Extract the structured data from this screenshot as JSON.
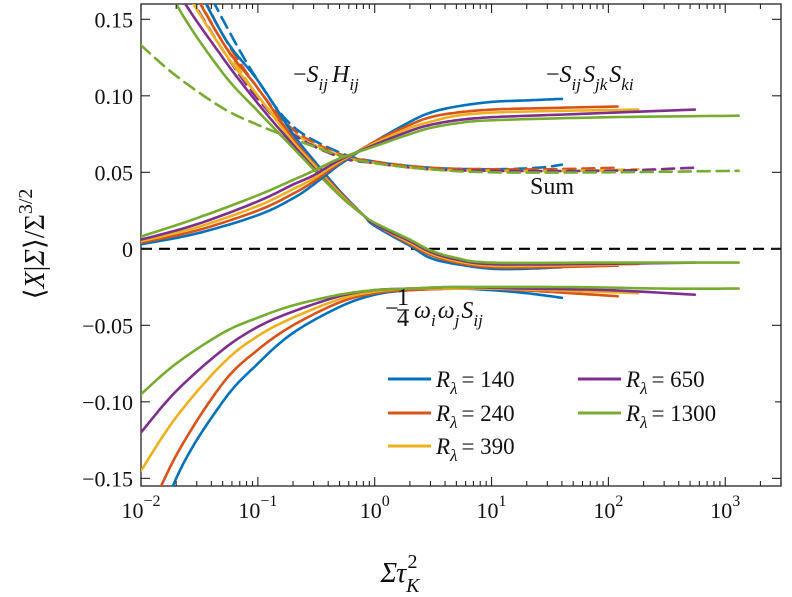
{
  "chart_data": {
    "type": "line",
    "xscale": "log",
    "xlim": [
      0.01,
      3000
    ],
    "ylim": [
      -0.155,
      0.16
    ],
    "xticks": [
      {
        "value": 0.01,
        "base": "10",
        "exp": "−2"
      },
      {
        "value": 0.1,
        "base": "10",
        "exp": "−1"
      },
      {
        "value": 1,
        "base": "10",
        "exp": "0"
      },
      {
        "value": 10,
        "base": "10",
        "exp": "1"
      },
      {
        "value": 100,
        "base": "10",
        "exp": "2"
      },
      {
        "value": 1000,
        "base": "10",
        "exp": "3"
      }
    ],
    "yticks": [
      {
        "value": 0.15,
        "label": "0.15"
      },
      {
        "value": 0.1,
        "label": "0.10"
      },
      {
        "value": 0.05,
        "label": "0.05"
      },
      {
        "value": 0,
        "label": "0"
      },
      {
        "value": -0.05,
        "label": "−0.05"
      },
      {
        "value": -0.1,
        "label": "−0.10"
      },
      {
        "value": -0.15,
        "label": "−0.15"
      }
    ],
    "xlabel": "Στ_K^2",
    "ylabel": "⟨X|Σ⟩/Σ^{3/2}",
    "grid": false,
    "legend_position": "bottom-right",
    "colors": {
      "140": "#0072BD",
      "240": "#D95319",
      "390": "#EDB120",
      "650": "#7E2F8E",
      "1300": "#77AC30"
    },
    "series": [
      {
        "name": "Rλ = 140",
        "legend_label": "= 140",
        "color": "#0072BD",
        "xmax": 40,
        "SH": [
          [
            0.01,
            0.25
          ],
          [
            0.02,
            0.2
          ],
          [
            0.05,
            0.14
          ],
          [
            0.1,
            0.11
          ],
          [
            0.2,
            0.075
          ],
          [
            0.3,
            0.058
          ],
          [
            0.5,
            0.038
          ],
          [
            0.8,
            0.022
          ],
          [
            1,
            0.015
          ],
          [
            2,
            0.002
          ],
          [
            3,
            -0.006
          ],
          [
            5,
            -0.01
          ],
          [
            10,
            -0.013
          ],
          [
            20,
            -0.013
          ],
          [
            40,
            -0.012
          ]
        ],
        "SSS": [
          [
            0.01,
            0.003
          ],
          [
            0.03,
            0.01
          ],
          [
            0.1,
            0.022
          ],
          [
            0.2,
            0.033
          ],
          [
            0.3,
            0.042
          ],
          [
            0.5,
            0.055
          ],
          [
            1,
            0.07
          ],
          [
            2,
            0.083
          ],
          [
            3,
            0.089
          ],
          [
            5,
            0.093
          ],
          [
            10,
            0.096
          ],
          [
            20,
            0.097
          ],
          [
            40,
            0.098
          ]
        ],
        "WWS": [
          [
            0.01,
            -0.22
          ],
          [
            0.02,
            -0.15
          ],
          [
            0.05,
            -0.1
          ],
          [
            0.1,
            -0.075
          ],
          [
            0.2,
            -0.055
          ],
          [
            0.5,
            -0.038
          ],
          [
            1,
            -0.03
          ],
          [
            2,
            -0.027
          ],
          [
            5,
            -0.026
          ],
          [
            10,
            -0.027
          ],
          [
            20,
            -0.029
          ],
          [
            40,
            -0.032
          ]
        ],
        "SUM": [
          [
            0.01,
            0.25
          ],
          [
            0.02,
            0.21
          ],
          [
            0.05,
            0.15
          ],
          [
            0.1,
            0.11
          ],
          [
            0.2,
            0.08
          ],
          [
            0.5,
            0.063
          ],
          [
            1,
            0.057
          ],
          [
            3,
            0.053
          ],
          [
            10,
            0.052
          ],
          [
            25,
            0.053
          ],
          [
            40,
            0.055
          ]
        ]
      },
      {
        "name": "Rλ = 240",
        "legend_label": "= 240",
        "color": "#D95319",
        "xmax": 120,
        "SH": [
          [
            0.01,
            0.24
          ],
          [
            0.02,
            0.19
          ],
          [
            0.05,
            0.135
          ],
          [
            0.1,
            0.105
          ],
          [
            0.2,
            0.072
          ],
          [
            0.3,
            0.056
          ],
          [
            0.5,
            0.037
          ],
          [
            0.8,
            0.022
          ],
          [
            1,
            0.016
          ],
          [
            2,
            0.003
          ],
          [
            3,
            -0.004
          ],
          [
            5,
            -0.009
          ],
          [
            10,
            -0.012
          ],
          [
            30,
            -0.012
          ],
          [
            120,
            -0.011
          ]
        ],
        "SSS": [
          [
            0.01,
            0.004
          ],
          [
            0.03,
            0.012
          ],
          [
            0.1,
            0.025
          ],
          [
            0.2,
            0.036
          ],
          [
            0.3,
            0.044
          ],
          [
            0.5,
            0.056
          ],
          [
            1,
            0.07
          ],
          [
            2,
            0.081
          ],
          [
            3,
            0.086
          ],
          [
            5,
            0.089
          ],
          [
            10,
            0.091
          ],
          [
            30,
            0.092
          ],
          [
            120,
            0.093
          ]
        ],
        "WWS": [
          [
            0.01,
            -0.185
          ],
          [
            0.02,
            -0.135
          ],
          [
            0.05,
            -0.088
          ],
          [
            0.1,
            -0.066
          ],
          [
            0.2,
            -0.05
          ],
          [
            0.5,
            -0.035
          ],
          [
            1,
            -0.029
          ],
          [
            2,
            -0.027
          ],
          [
            5,
            -0.026
          ],
          [
            10,
            -0.026
          ],
          [
            30,
            -0.028
          ],
          [
            120,
            -0.031
          ]
        ],
        "SUM": [
          [
            0.01,
            0.24
          ],
          [
            0.02,
            0.2
          ],
          [
            0.05,
            0.14
          ],
          [
            0.1,
            0.105
          ],
          [
            0.2,
            0.078
          ],
          [
            0.5,
            0.062
          ],
          [
            1,
            0.057
          ],
          [
            3,
            0.053
          ],
          [
            10,
            0.052
          ],
          [
            30,
            0.052
          ],
          [
            120,
            0.053
          ]
        ]
      },
      {
        "name": "Rλ = 390",
        "legend_label": "= 390",
        "color": "#EDB120",
        "xmax": 180,
        "SH": [
          [
            0.01,
            0.23
          ],
          [
            0.02,
            0.18
          ],
          [
            0.05,
            0.13
          ],
          [
            0.1,
            0.1
          ],
          [
            0.2,
            0.07
          ],
          [
            0.3,
            0.055
          ],
          [
            0.5,
            0.036
          ],
          [
            0.8,
            0.022
          ],
          [
            1,
            0.016
          ],
          [
            2,
            0.004
          ],
          [
            3,
            -0.003
          ],
          [
            5,
            -0.008
          ],
          [
            10,
            -0.011
          ],
          [
            30,
            -0.011
          ],
          [
            180,
            -0.01
          ]
        ],
        "SSS": [
          [
            0.01,
            0.005
          ],
          [
            0.03,
            0.014
          ],
          [
            0.1,
            0.028
          ],
          [
            0.2,
            0.039
          ],
          [
            0.3,
            0.046
          ],
          [
            0.5,
            0.057
          ],
          [
            1,
            0.069
          ],
          [
            2,
            0.079
          ],
          [
            3,
            0.083
          ],
          [
            5,
            0.087
          ],
          [
            10,
            0.089
          ],
          [
            30,
            0.09
          ],
          [
            180,
            0.091
          ]
        ],
        "WWS": [
          [
            0.01,
            -0.145
          ],
          [
            0.02,
            -0.11
          ],
          [
            0.05,
            -0.075
          ],
          [
            0.1,
            -0.057
          ],
          [
            0.2,
            -0.045
          ],
          [
            0.5,
            -0.033
          ],
          [
            1,
            -0.028
          ],
          [
            2,
            -0.026
          ],
          [
            5,
            -0.026
          ],
          [
            10,
            -0.026
          ],
          [
            30,
            -0.027
          ],
          [
            180,
            -0.029
          ]
        ],
        "SUM": [
          [
            0.01,
            0.23
          ],
          [
            0.02,
            0.19
          ],
          [
            0.05,
            0.135
          ],
          [
            0.1,
            0.1
          ],
          [
            0.2,
            0.076
          ],
          [
            0.5,
            0.061
          ],
          [
            1,
            0.056
          ],
          [
            3,
            0.052
          ],
          [
            10,
            0.051
          ],
          [
            50,
            0.051
          ],
          [
            180,
            0.052
          ]
        ]
      },
      {
        "name": "Rλ = 650",
        "legend_label": "= 650",
        "color": "#7E2F8E",
        "xmax": 550,
        "SH": [
          [
            0.01,
            0.22
          ],
          [
            0.02,
            0.17
          ],
          [
            0.05,
            0.125
          ],
          [
            0.1,
            0.095
          ],
          [
            0.2,
            0.068
          ],
          [
            0.3,
            0.053
          ],
          [
            0.5,
            0.035
          ],
          [
            0.8,
            0.022
          ],
          [
            1,
            0.016
          ],
          [
            2,
            0.005
          ],
          [
            3,
            -0.002
          ],
          [
            5,
            -0.007
          ],
          [
            10,
            -0.01
          ],
          [
            50,
            -0.01
          ],
          [
            550,
            -0.009
          ]
        ],
        "SSS": [
          [
            0.01,
            0.006
          ],
          [
            0.03,
            0.016
          ],
          [
            0.1,
            0.031
          ],
          [
            0.2,
            0.042
          ],
          [
            0.3,
            0.048
          ],
          [
            0.5,
            0.058
          ],
          [
            1,
            0.068
          ],
          [
            2,
            0.077
          ],
          [
            3,
            0.081
          ],
          [
            5,
            0.084
          ],
          [
            10,
            0.086
          ],
          [
            50,
            0.088
          ],
          [
            550,
            0.091
          ]
        ],
        "WWS": [
          [
            0.01,
            -0.12
          ],
          [
            0.02,
            -0.093
          ],
          [
            0.05,
            -0.066
          ],
          [
            0.1,
            -0.051
          ],
          [
            0.2,
            -0.041
          ],
          [
            0.5,
            -0.031
          ],
          [
            1,
            -0.027
          ],
          [
            2,
            -0.026
          ],
          [
            5,
            -0.025
          ],
          [
            20,
            -0.026
          ],
          [
            100,
            -0.027
          ],
          [
            550,
            -0.03
          ]
        ],
        "SUM": [
          [
            0.01,
            0.22
          ],
          [
            0.02,
            0.18
          ],
          [
            0.05,
            0.13
          ],
          [
            0.1,
            0.098
          ],
          [
            0.2,
            0.075
          ],
          [
            0.5,
            0.06
          ],
          [
            1,
            0.056
          ],
          [
            3,
            0.052
          ],
          [
            10,
            0.051
          ],
          [
            100,
            0.051
          ],
          [
            550,
            0.053
          ]
        ]
      },
      {
        "name": "Rλ = 1300",
        "legend_label": "= 1300",
        "color": "#77AC30",
        "xmax": 1300,
        "SH": [
          [
            0.01,
            0.21
          ],
          [
            0.02,
            0.16
          ],
          [
            0.05,
            0.115
          ],
          [
            0.1,
            0.09
          ],
          [
            0.2,
            0.066
          ],
          [
            0.3,
            0.052
          ],
          [
            0.5,
            0.035
          ],
          [
            0.8,
            0.022
          ],
          [
            1,
            0.017
          ],
          [
            2,
            0.006
          ],
          [
            3,
            -0.001
          ],
          [
            5,
            -0.006
          ],
          [
            10,
            -0.009
          ],
          [
            100,
            -0.009
          ],
          [
            1300,
            -0.009
          ]
        ],
        "SSS": [
          [
            0.01,
            0.008
          ],
          [
            0.03,
            0.02
          ],
          [
            0.1,
            0.035
          ],
          [
            0.2,
            0.045
          ],
          [
            0.3,
            0.051
          ],
          [
            0.5,
            0.059
          ],
          [
            1,
            0.067
          ],
          [
            2,
            0.075
          ],
          [
            3,
            0.079
          ],
          [
            5,
            0.082
          ],
          [
            10,
            0.084
          ],
          [
            100,
            0.086
          ],
          [
            1300,
            0.087
          ]
        ],
        "WWS": [
          [
            0.01,
            -0.095
          ],
          [
            0.02,
            -0.075
          ],
          [
            0.05,
            -0.055
          ],
          [
            0.1,
            -0.045
          ],
          [
            0.2,
            -0.037
          ],
          [
            0.5,
            -0.03
          ],
          [
            1,
            -0.027
          ],
          [
            2,
            -0.026
          ],
          [
            5,
            -0.025
          ],
          [
            50,
            -0.025
          ],
          [
            300,
            -0.026
          ],
          [
            1300,
            -0.026
          ]
        ],
        "SUM": [
          [
            0.01,
            0.133
          ],
          [
            0.02,
            0.113
          ],
          [
            0.05,
            0.092
          ],
          [
            0.1,
            0.081
          ],
          [
            0.2,
            0.072
          ],
          [
            0.5,
            0.061
          ],
          [
            1,
            0.056
          ],
          [
            3,
            0.052
          ],
          [
            10,
            0.05
          ],
          [
            100,
            0.05
          ],
          [
            1300,
            0.051
          ]
        ]
      }
    ],
    "annotations": {
      "sh": {
        "minus": "−",
        "s": "S",
        "ij": "ij",
        "h": "H",
        "ij2": "ij"
      },
      "sss": {
        "minus": "−",
        "s1": "S",
        "ij": "ij",
        "s2": "S",
        "jk": "jk",
        "s3": "S",
        "ki": "ki"
      },
      "sum": "Sum",
      "wws": {
        "minus": "−",
        "num": "1",
        "den": "4",
        "w1": "ω",
        "i": "i",
        "w2": "ω",
        "j": "j",
        "s": "S",
        "ij": "ij"
      }
    },
    "axis_titles": {
      "x": {
        "main": "Στ",
        "sub": "K",
        "sup": "2"
      },
      "y": {
        "l": "⟨",
        "x": "X",
        "bar": "|",
        "sig": "Σ",
        "r": "⟩/Σ",
        "sup": "3/2"
      }
    },
    "legend": {
      "r_symbol": "R",
      "lambda": "λ"
    }
  }
}
